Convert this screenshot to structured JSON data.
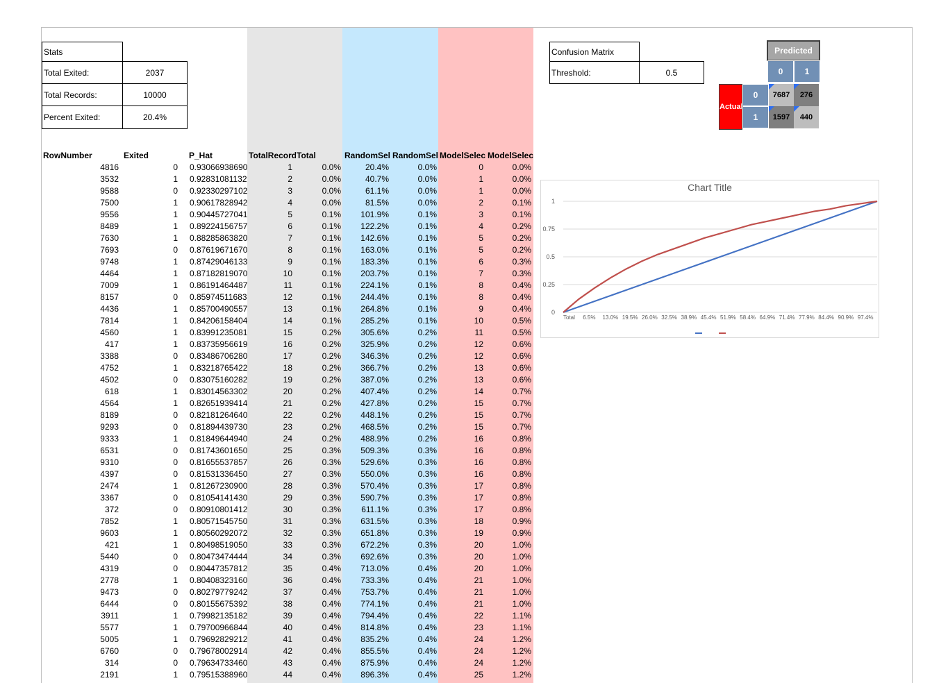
{
  "stats": {
    "title": "Stats",
    "items": [
      {
        "label": "Total Exited:",
        "value": "2037"
      },
      {
        "label": "Total Records:",
        "value": "10000"
      },
      {
        "label": "Percent Exited:",
        "value": "20.4%"
      }
    ]
  },
  "confusion": {
    "title": "Confusion Matrix",
    "threshold_label": "Threshold:",
    "threshold_value": "0.5",
    "predicted_label": "Predicted",
    "actual_label": "Actual",
    "col_labels": [
      "0",
      "1"
    ],
    "row_labels": [
      "0",
      "1"
    ],
    "cells": [
      [
        "7687",
        "276"
      ],
      [
        "1597",
        "440"
      ]
    ],
    "colors": {
      "header": "#7190b5",
      "actual": "#ff0000",
      "predicted": "#a6a6a6"
    }
  },
  "table": {
    "headers": [
      "RowNumber",
      "Exited",
      "P_Hat",
      "TotalRecord",
      "Total",
      "RandomSel",
      "RandomSel",
      "ModelSelec",
      "ModelSelec"
    ],
    "rows": [
      [
        "4816",
        "0",
        "0.93066938690",
        "1",
        "0.0%",
        "20.4%",
        "0.0%",
        "0",
        "0.0%"
      ],
      [
        "3532",
        "1",
        "0.92831081132",
        "2",
        "0.0%",
        "40.7%",
        "0.0%",
        "1",
        "0.0%"
      ],
      [
        "9588",
        "0",
        "0.92330297102",
        "3",
        "0.0%",
        "61.1%",
        "0.0%",
        "1",
        "0.0%"
      ],
      [
        "7500",
        "1",
        "0.90617828942",
        "4",
        "0.0%",
        "81.5%",
        "0.0%",
        "2",
        "0.1%"
      ],
      [
        "9556",
        "1",
        "0.90445727041",
        "5",
        "0.1%",
        "101.9%",
        "0.1%",
        "3",
        "0.1%"
      ],
      [
        "8489",
        "1",
        "0.89224156757",
        "6",
        "0.1%",
        "122.2%",
        "0.1%",
        "4",
        "0.2%"
      ],
      [
        "7630",
        "1",
        "0.88285863820",
        "7",
        "0.1%",
        "142.6%",
        "0.1%",
        "5",
        "0.2%"
      ],
      [
        "7693",
        "0",
        "0.87619671670",
        "8",
        "0.1%",
        "163.0%",
        "0.1%",
        "5",
        "0.2%"
      ],
      [
        "9748",
        "1",
        "0.87429046133",
        "9",
        "0.1%",
        "183.3%",
        "0.1%",
        "6",
        "0.3%"
      ],
      [
        "4464",
        "1",
        "0.87182819070",
        "10",
        "0.1%",
        "203.7%",
        "0.1%",
        "7",
        "0.3%"
      ],
      [
        "7009",
        "1",
        "0.86191464487",
        "11",
        "0.1%",
        "224.1%",
        "0.1%",
        "8",
        "0.4%"
      ],
      [
        "8157",
        "0",
        "0.85974511683",
        "12",
        "0.1%",
        "244.4%",
        "0.1%",
        "8",
        "0.4%"
      ],
      [
        "4436",
        "1",
        "0.85700490557",
        "13",
        "0.1%",
        "264.8%",
        "0.1%",
        "9",
        "0.4%"
      ],
      [
        "7814",
        "1",
        "0.84206158404",
        "14",
        "0.1%",
        "285.2%",
        "0.1%",
        "10",
        "0.5%"
      ],
      [
        "4560",
        "1",
        "0.83991235081",
        "15",
        "0.2%",
        "305.6%",
        "0.2%",
        "11",
        "0.5%"
      ],
      [
        "417",
        "1",
        "0.83735956619",
        "16",
        "0.2%",
        "325.9%",
        "0.2%",
        "12",
        "0.6%"
      ],
      [
        "3388",
        "0",
        "0.83486706280",
        "17",
        "0.2%",
        "346.3%",
        "0.2%",
        "12",
        "0.6%"
      ],
      [
        "4752",
        "1",
        "0.83218765422",
        "18",
        "0.2%",
        "366.7%",
        "0.2%",
        "13",
        "0.6%"
      ],
      [
        "4502",
        "0",
        "0.83075160282",
        "19",
        "0.2%",
        "387.0%",
        "0.2%",
        "13",
        "0.6%"
      ],
      [
        "618",
        "1",
        "0.83014563302",
        "20",
        "0.2%",
        "407.4%",
        "0.2%",
        "14",
        "0.7%"
      ],
      [
        "4564",
        "1",
        "0.82651939414",
        "21",
        "0.2%",
        "427.8%",
        "0.2%",
        "15",
        "0.7%"
      ],
      [
        "8189",
        "0",
        "0.82181264640",
        "22",
        "0.2%",
        "448.1%",
        "0.2%",
        "15",
        "0.7%"
      ],
      [
        "9293",
        "0",
        "0.81894439730",
        "23",
        "0.2%",
        "468.5%",
        "0.2%",
        "15",
        "0.7%"
      ],
      [
        "9333",
        "1",
        "0.81849644940",
        "24",
        "0.2%",
        "488.9%",
        "0.2%",
        "16",
        "0.8%"
      ],
      [
        "6531",
        "0",
        "0.81743601650",
        "25",
        "0.3%",
        "509.3%",
        "0.3%",
        "16",
        "0.8%"
      ],
      [
        "9310",
        "0",
        "0.81655537857",
        "26",
        "0.3%",
        "529.6%",
        "0.3%",
        "16",
        "0.8%"
      ],
      [
        "4397",
        "0",
        "0.81531336450",
        "27",
        "0.3%",
        "550.0%",
        "0.3%",
        "16",
        "0.8%"
      ],
      [
        "2474",
        "1",
        "0.81267230900",
        "28",
        "0.3%",
        "570.4%",
        "0.3%",
        "17",
        "0.8%"
      ],
      [
        "3367",
        "0",
        "0.81054141430",
        "29",
        "0.3%",
        "590.7%",
        "0.3%",
        "17",
        "0.8%"
      ],
      [
        "372",
        "0",
        "0.80910801412",
        "30",
        "0.3%",
        "611.1%",
        "0.3%",
        "17",
        "0.8%"
      ],
      [
        "7852",
        "1",
        "0.80571545750",
        "31",
        "0.3%",
        "631.5%",
        "0.3%",
        "18",
        "0.9%"
      ],
      [
        "9603",
        "1",
        "0.80560292072",
        "32",
        "0.3%",
        "651.8%",
        "0.3%",
        "19",
        "0.9%"
      ],
      [
        "421",
        "1",
        "0.80498519050",
        "33",
        "0.3%",
        "672.2%",
        "0.3%",
        "20",
        "1.0%"
      ],
      [
        "5440",
        "0",
        "0.80473474444",
        "34",
        "0.3%",
        "692.6%",
        "0.3%",
        "20",
        "1.0%"
      ],
      [
        "4319",
        "0",
        "0.80447357812",
        "35",
        "0.4%",
        "713.0%",
        "0.4%",
        "20",
        "1.0%"
      ],
      [
        "2778",
        "1",
        "0.80408323160",
        "36",
        "0.4%",
        "733.3%",
        "0.4%",
        "21",
        "1.0%"
      ],
      [
        "9473",
        "0",
        "0.80279779242",
        "37",
        "0.4%",
        "753.7%",
        "0.4%",
        "21",
        "1.0%"
      ],
      [
        "6444",
        "0",
        "0.80155675392",
        "38",
        "0.4%",
        "774.1%",
        "0.4%",
        "21",
        "1.0%"
      ],
      [
        "3911",
        "1",
        "0.79982135182",
        "39",
        "0.4%",
        "794.4%",
        "0.4%",
        "22",
        "1.1%"
      ],
      [
        "5577",
        "1",
        "0.79700966844",
        "40",
        "0.4%",
        "814.8%",
        "0.4%",
        "23",
        "1.1%"
      ],
      [
        "5005",
        "1",
        "0.79692829212",
        "41",
        "0.4%",
        "835.2%",
        "0.4%",
        "24",
        "1.2%"
      ],
      [
        "6760",
        "0",
        "0.79678002914",
        "42",
        "0.4%",
        "855.5%",
        "0.4%",
        "24",
        "1.2%"
      ],
      [
        "314",
        "0",
        "0.79634733460",
        "43",
        "0.4%",
        "875.9%",
        "0.4%",
        "24",
        "1.2%"
      ],
      [
        "2191",
        "1",
        "0.79515388960",
        "44",
        "0.4%",
        "896.3%",
        "0.4%",
        "25",
        "1.2%"
      ]
    ]
  },
  "chart_data": {
    "type": "line",
    "title": "Chart Title",
    "x_tick_labels": [
      "Total",
      "6.5%",
      "13.0%",
      "19.5%",
      "26.0%",
      "32.5%",
      "38.9%",
      "45.4%",
      "51.9%",
      "58.4%",
      "64.9%",
      "71.4%",
      "77.9%",
      "84.4%",
      "90.9%",
      "97.4%"
    ],
    "y_ticks": [
      0,
      0.25,
      0.5,
      0.75,
      1
    ],
    "ylim": [
      0,
      1
    ],
    "x": [
      0,
      0.05,
      0.1,
      0.15,
      0.2,
      0.25,
      0.3,
      0.35,
      0.4,
      0.45,
      0.5,
      0.55,
      0.6,
      0.65,
      0.7,
      0.75,
      0.8,
      0.85,
      0.9,
      0.95,
      1.0
    ],
    "series": [
      {
        "color": "#4472c4",
        "values": [
          0,
          0.05,
          0.1,
          0.15,
          0.2,
          0.25,
          0.3,
          0.35,
          0.4,
          0.45,
          0.5,
          0.55,
          0.6,
          0.65,
          0.7,
          0.75,
          0.8,
          0.85,
          0.9,
          0.95,
          1.0
        ]
      },
      {
        "color": "#c0504d",
        "values": [
          0,
          0.12,
          0.22,
          0.31,
          0.39,
          0.46,
          0.52,
          0.57,
          0.62,
          0.67,
          0.71,
          0.75,
          0.79,
          0.82,
          0.85,
          0.88,
          0.91,
          0.93,
          0.96,
          0.98,
          1.0
        ]
      }
    ],
    "legend": "bottom",
    "grid": true
  }
}
